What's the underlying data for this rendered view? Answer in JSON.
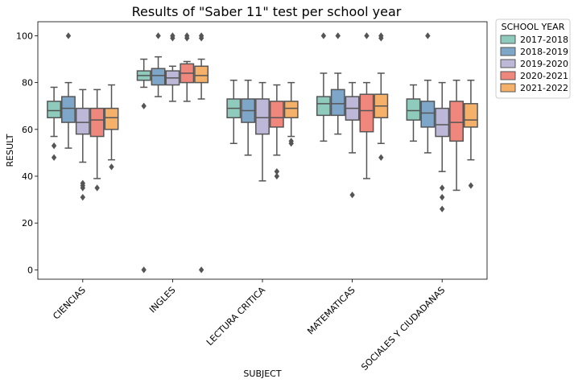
{
  "chart_data": {
    "type": "box",
    "title": "Results of \"Saber 11\" test per school year",
    "xlabel": "SUBJECT",
    "ylabel": "RESULT",
    "ylim": [
      -4,
      106
    ],
    "yticks": [
      0,
      20,
      40,
      60,
      80,
      100
    ],
    "categories": [
      "CIENCIAS",
      "INGLES",
      "LECTURA CRITICA",
      "MATEMATICAS",
      "SOCIALES Y CIUDADANAS"
    ],
    "grid": false,
    "legend": {
      "title": "SCHOOL YEAR",
      "placement": "outside right, top"
    },
    "series": [
      {
        "name": "2017-2018",
        "color": "#8fcbbd",
        "boxes": [
          {
            "whislo": 57,
            "q1": 65,
            "med": 68,
            "q3": 72,
            "whishi": 78,
            "fliers": [
              48,
              53
            ]
          },
          {
            "whislo": 78,
            "q1": 81,
            "med": 83,
            "q3": 85,
            "whishi": 90,
            "fliers": [
              70,
              0
            ]
          },
          {
            "whislo": 54,
            "q1": 65,
            "med": 69,
            "q3": 73,
            "whishi": 81,
            "fliers": []
          },
          {
            "whislo": 55,
            "q1": 66,
            "med": 71,
            "q3": 74,
            "whishi": 84,
            "fliers": [
              100
            ]
          },
          {
            "whislo": 55,
            "q1": 64,
            "med": 68,
            "q3": 73,
            "whishi": 79,
            "fliers": []
          }
        ]
      },
      {
        "name": "2018-2019",
        "color": "#7ea6c8",
        "boxes": [
          {
            "whislo": 52,
            "q1": 63,
            "med": 69,
            "q3": 74,
            "whishi": 80,
            "fliers": [
              100
            ]
          },
          {
            "whislo": 74,
            "q1": 79,
            "med": 83,
            "q3": 86,
            "whishi": 91,
            "fliers": [
              100
            ]
          },
          {
            "whislo": 49,
            "q1": 63,
            "med": 68,
            "q3": 73,
            "whishi": 81,
            "fliers": []
          },
          {
            "whislo": 58,
            "q1": 66,
            "med": 71,
            "q3": 77,
            "whishi": 84,
            "fliers": [
              100
            ]
          },
          {
            "whislo": 50,
            "q1": 61,
            "med": 67,
            "q3": 72,
            "whishi": 81,
            "fliers": [
              100
            ]
          }
        ]
      },
      {
        "name": "2019-2020",
        "color": "#bdb8d7",
        "boxes": [
          {
            "whislo": 46,
            "q1": 58,
            "med": 63,
            "q3": 69,
            "whishi": 77,
            "fliers": [
              37,
              36,
              35,
              31
            ]
          },
          {
            "whislo": 72,
            "q1": 79,
            "med": 82,
            "q3": 85,
            "whishi": 87,
            "fliers": [
              100,
              99
            ]
          },
          {
            "whislo": 38,
            "q1": 58,
            "med": 65,
            "q3": 73,
            "whishi": 80,
            "fliers": []
          },
          {
            "whislo": 50,
            "q1": 64,
            "med": 69,
            "q3": 74,
            "whishi": 80,
            "fliers": [
              32
            ]
          },
          {
            "whislo": 42,
            "q1": 57,
            "med": 62,
            "q3": 69,
            "whishi": 80,
            "fliers": [
              35,
              31,
              26
            ]
          }
        ]
      },
      {
        "name": "2020-2021",
        "color": "#f0877c",
        "boxes": [
          {
            "whislo": 39,
            "q1": 57,
            "med": 64,
            "q3": 69,
            "whishi": 77,
            "fliers": [
              35
            ]
          },
          {
            "whislo": 72,
            "q1": 80,
            "med": 84,
            "q3": 88,
            "whishi": 89,
            "fliers": [
              100,
              99
            ]
          },
          {
            "whislo": 49,
            "q1": 61,
            "med": 65,
            "q3": 72,
            "whishi": 79,
            "fliers": [
              42,
              40
            ]
          },
          {
            "whislo": 39,
            "q1": 59,
            "med": 68,
            "q3": 75,
            "whishi": 80,
            "fliers": [
              100
            ]
          },
          {
            "whislo": 34,
            "q1": 55,
            "med": 63,
            "q3": 72,
            "whishi": 81,
            "fliers": []
          }
        ]
      },
      {
        "name": "2021-2022",
        "color": "#f5b06a",
        "boxes": [
          {
            "whislo": 47,
            "q1": 60,
            "med": 65,
            "q3": 69,
            "whishi": 79,
            "fliers": [
              44
            ]
          },
          {
            "whislo": 73,
            "q1": 80,
            "med": 83,
            "q3": 87,
            "whishi": 90,
            "fliers": [
              100,
              99,
              0
            ]
          },
          {
            "whislo": 57,
            "q1": 65,
            "med": 69,
            "q3": 72,
            "whishi": 80,
            "fliers": [
              55,
              54
            ]
          },
          {
            "whislo": 54,
            "q1": 65,
            "med": 70,
            "q3": 75,
            "whishi": 84,
            "fliers": [
              100,
              99,
              48
            ]
          },
          {
            "whislo": 47,
            "q1": 61,
            "med": 64,
            "q3": 71,
            "whishi": 81,
            "fliers": [
              36
            ]
          }
        ]
      }
    ]
  }
}
